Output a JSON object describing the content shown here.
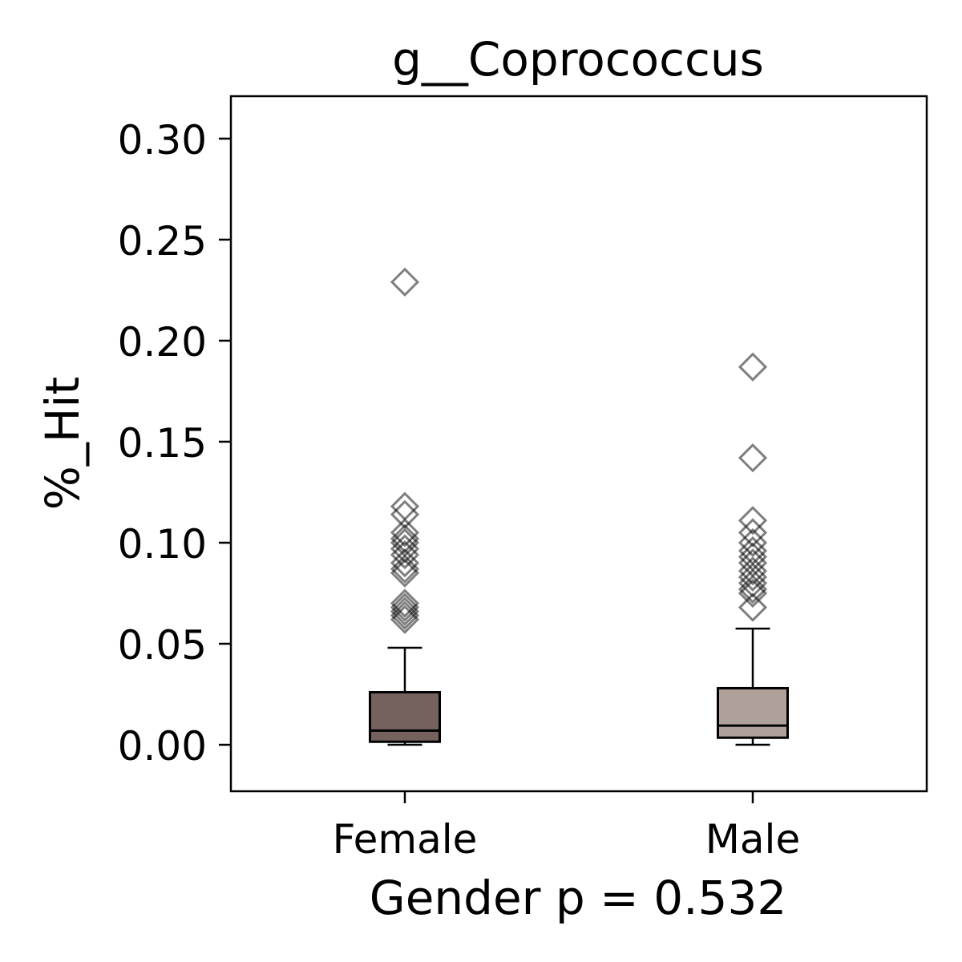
{
  "chart_data": {
    "type": "box",
    "title": "g__Coprococcus",
    "xlabel": "Gender p = 0.532",
    "ylabel": "%_Hit",
    "ylim": [
      -0.023,
      0.321
    ],
    "yticks": [
      0.0,
      0.05,
      0.1,
      0.15,
      0.2,
      0.25,
      0.3
    ],
    "ytick_labels": [
      "0.00",
      "0.05",
      "0.10",
      "0.15",
      "0.20",
      "0.25",
      "0.30"
    ],
    "categories": [
      "Female",
      "Male"
    ],
    "grid": false,
    "legend": "none",
    "boxes": [
      {
        "category": "Female",
        "whisker_low": 0.0,
        "q1": 0.0015,
        "median": 0.007,
        "q3": 0.026,
        "whisker_high": 0.048,
        "color": "#75625e",
        "outliers": [
          0.229,
          0.118,
          0.114,
          0.105,
          0.102,
          0.1,
          0.097,
          0.094,
          0.09,
          0.087,
          0.085,
          0.07,
          0.068,
          0.066,
          0.064,
          0.062
        ]
      },
      {
        "category": "Male",
        "whisker_low": 0.0,
        "q1": 0.0035,
        "median": 0.0095,
        "q3": 0.028,
        "whisker_high": 0.0575,
        "color": "#afa199",
        "outliers": [
          0.187,
          0.142,
          0.111,
          0.105,
          0.1,
          0.096,
          0.093,
          0.09,
          0.086,
          0.083,
          0.08,
          0.077,
          0.075,
          0.068
        ]
      }
    ]
  }
}
